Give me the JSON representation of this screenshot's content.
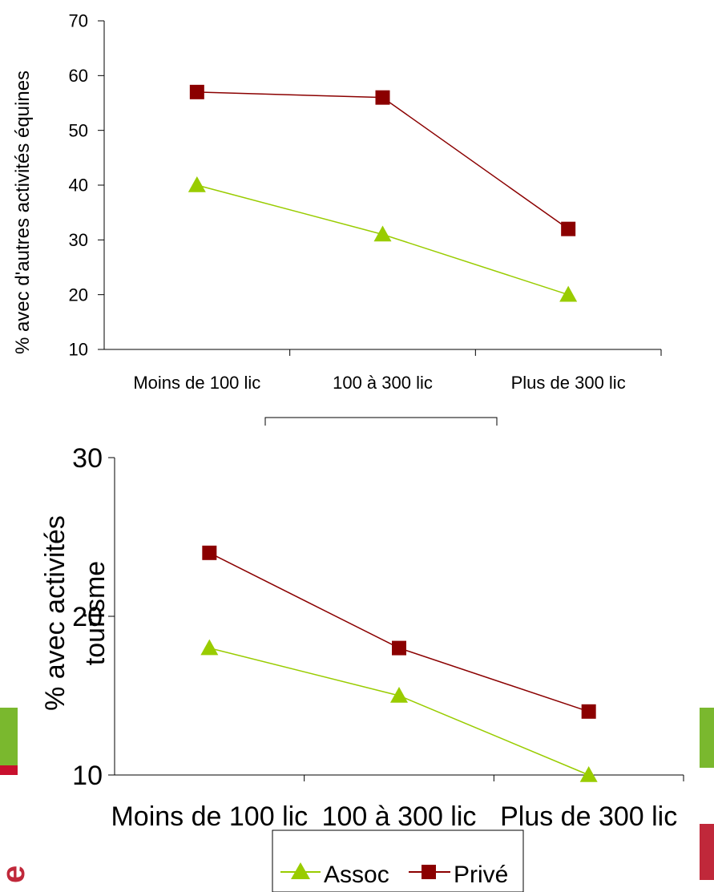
{
  "colors": {
    "assoc": "#99cc00",
    "prive": "#8b0000",
    "axis": "#000000",
    "decor_green": "#7ab82e",
    "decor_red": "#c0283a"
  },
  "chart_data": [
    {
      "type": "line",
      "categories": [
        "Moins de 100 lic",
        "100 à 300 lic",
        "Plus de 300 lic"
      ],
      "ylabel": "% avec d'autres activités équines",
      "ylim": [
        10,
        70
      ],
      "yticks": [
        "10",
        "20",
        "30",
        "40",
        "50",
        "60",
        "70"
      ],
      "series": [
        {
          "name": "Assoc",
          "marker": "triangle",
          "values": [
            40,
            31,
            20
          ]
        },
        {
          "name": "Privé",
          "marker": "square",
          "values": [
            57,
            56,
            32
          ]
        }
      ]
    },
    {
      "type": "line",
      "categories": [
        "Moins de 100 lic",
        "100 à 300 lic",
        "Plus de 300 lic"
      ],
      "ylabel_lines": [
        "% avec activités",
        "tourisme"
      ],
      "ylim": [
        10,
        30
      ],
      "yticks": [
        "10",
        "20",
        "30"
      ],
      "legend": "bottom",
      "series": [
        {
          "name": "Assoc",
          "marker": "triangle",
          "values": [
            18,
            15,
            10
          ]
        },
        {
          "name": "Privé",
          "marker": "square",
          "values": [
            24,
            18,
            14
          ]
        }
      ]
    }
  ]
}
